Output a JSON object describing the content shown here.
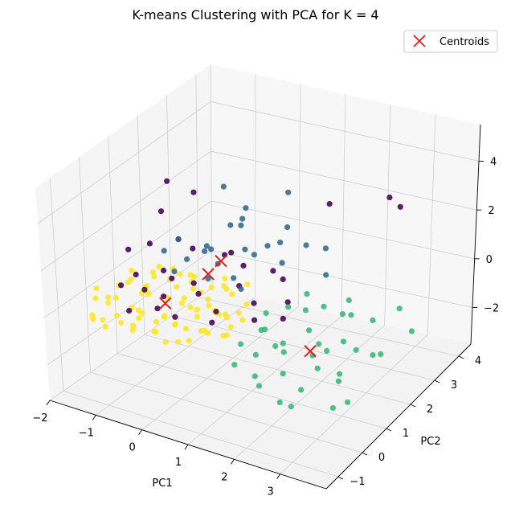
{
  "chart_data": {
    "type": "scatter",
    "projection": "3d",
    "title": "K-means Clustering with PCA for K = 4",
    "xlabel": "PC1",
    "ylabel": "PC2",
    "zlabel": "",
    "xlim": [
      -2,
      4
    ],
    "ylim": [
      -1.5,
      4.5
    ],
    "zlim": [
      -3.5,
      5.5
    ],
    "xticks": [
      "−2",
      "−1",
      "0",
      "1",
      "2",
      "3"
    ],
    "yticks": [
      "−1",
      "0",
      "1",
      "2",
      "3",
      "4"
    ],
    "zticks": [
      "−2",
      "0",
      "2",
      "4"
    ],
    "grid": true,
    "legend": {
      "position": "top-right",
      "entries": [
        "Centroids"
      ]
    },
    "colors": {
      "cluster_0": "#440154",
      "cluster_1": "#31688e",
      "cluster_2": "#35b779",
      "cluster_3": "#fde725",
      "centroid": "#e41a1c"
    },
    "series": [
      {
        "cluster": 0,
        "points": [
          [
            -1.2,
            0.5,
            0.6
          ],
          [
            -0.9,
            0.3,
            0.3
          ],
          [
            -0.6,
            0.8,
            0.5
          ],
          [
            -0.3,
            1.1,
            0.2
          ],
          [
            -1.5,
            1.5,
            0.9
          ],
          [
            0.1,
            0.6,
            0.4
          ],
          [
            0.4,
            1.6,
            0.0
          ],
          [
            -0.8,
            1.9,
            0.7
          ],
          [
            0.2,
            2.1,
            0.3
          ],
          [
            -1.1,
            -0.2,
            0.8
          ],
          [
            0.6,
            0.4,
            0.1
          ],
          [
            0.9,
            1.3,
            -0.2
          ],
          [
            -0.4,
            2.4,
            0.2
          ],
          [
            1.3,
            1.9,
            -0.5
          ],
          [
            0.5,
            2.7,
            -0.3
          ],
          [
            -1.6,
            0.9,
            1.1
          ],
          [
            -0.2,
            -0.4,
            0.5
          ],
          [
            -0.7,
            -0.6,
            0.3
          ],
          [
            0.8,
            -0.1,
            0.2
          ],
          [
            -1.3,
            2.2,
            0.6
          ],
          [
            1.2,
            0.8,
            -0.3
          ],
          [
            0.3,
            -0.6,
            0.6
          ],
          [
            1.6,
            1.2,
            -0.4
          ],
          [
            -0.5,
            1.5,
            3.5
          ],
          [
            -1.1,
            1.3,
            2.6
          ],
          [
            0.6,
            1.0,
            2.0
          ],
          [
            1.4,
            3.3,
            2.3
          ],
          [
            -1.4,
            2.0,
            3.1
          ],
          [
            2.9,
            3.0,
            3.5
          ],
          [
            2.8,
            3.6,
            2.5
          ],
          [
            -0.3,
            0.0,
            0.6
          ],
          [
            0.9,
            2.4,
            -0.2
          ],
          [
            -0.9,
            1.0,
            0.5
          ]
        ]
      },
      {
        "cluster": 1,
        "points": [
          [
            -0.5,
            1.2,
            1.0
          ],
          [
            -0.3,
            1.6,
            1.3
          ],
          [
            0.0,
            1.5,
            0.8
          ],
          [
            -0.8,
            1.4,
            1.5
          ],
          [
            0.3,
            2.0,
            1.1
          ],
          [
            -0.2,
            2.3,
            1.6
          ],
          [
            0.5,
            2.5,
            0.9
          ],
          [
            -0.6,
            2.0,
            0.6
          ],
          [
            0.1,
            1.1,
            1.8
          ],
          [
            0.4,
            1.7,
            2.4
          ],
          [
            -0.1,
            2.7,
            2.0
          ],
          [
            0.7,
            2.9,
            1.4
          ],
          [
            1.0,
            2.2,
            0.7
          ],
          [
            1.3,
            2.6,
            1.2
          ],
          [
            -1.0,
            1.2,
            1.1
          ],
          [
            0.2,
            0.8,
            0.9
          ],
          [
            0.8,
            1.0,
            0.6
          ],
          [
            -0.4,
            2.4,
            3.0
          ],
          [
            0.6,
            3.1,
            2.6
          ],
          [
            1.5,
            3.0,
            0.8
          ],
          [
            1.8,
            2.5,
            0.3
          ],
          [
            0.2,
            2.5,
            0.4
          ],
          [
            -0.6,
            0.9,
            0.7
          ],
          [
            -0.3,
            2.9,
            1.3
          ],
          [
            0.9,
            2.3,
            1.4
          ],
          [
            0.4,
            1.4,
            0.5
          ]
        ]
      },
      {
        "cluster": 2,
        "points": [
          [
            1.6,
            0.5,
            -0.2
          ],
          [
            2.0,
            0.2,
            -0.4
          ],
          [
            2.4,
            0.8,
            -0.1
          ],
          [
            2.1,
            1.2,
            0.2
          ],
          [
            2.7,
            0.4,
            -0.6
          ],
          [
            3.1,
            0.9,
            -0.3
          ],
          [
            1.8,
            -0.2,
            -0.5
          ],
          [
            2.5,
            -0.4,
            -0.7
          ],
          [
            3.0,
            -0.6,
            -0.9
          ],
          [
            3.4,
            0.2,
            -0.8
          ],
          [
            3.6,
            -0.2,
            -0.6
          ],
          [
            3.8,
            0.8,
            -0.4
          ],
          [
            1.4,
            0.9,
            0.0
          ],
          [
            1.9,
            1.6,
            0.4
          ],
          [
            2.8,
            1.4,
            0.2
          ],
          [
            3.3,
            1.7,
            -0.1
          ],
          [
            3.7,
            1.3,
            -0.9
          ],
          [
            2.2,
            -0.8,
            -1.0
          ],
          [
            3.0,
            -1.0,
            -1.2
          ],
          [
            3.9,
            -0.4,
            -1.1
          ],
          [
            1.5,
            -0.5,
            -0.8
          ],
          [
            2.6,
            2.0,
            0.1
          ],
          [
            3.5,
            2.4,
            -0.2
          ],
          [
            4.0,
            2.0,
            -0.5
          ],
          [
            2.3,
            0.0,
            -0.3
          ],
          [
            2.9,
            0.6,
            -0.5
          ],
          [
            1.7,
            0.2,
            0.1
          ],
          [
            2.0,
            -0.6,
            -0.9
          ],
          [
            3.2,
            -0.3,
            -0.2
          ],
          [
            2.5,
            1.0,
            -0.8
          ],
          [
            1.3,
            0.1,
            -0.6
          ],
          [
            2.7,
            -0.9,
            -1.3
          ],
          [
            3.6,
            0.5,
            0.0
          ],
          [
            2.1,
            1.9,
            -0.3
          ],
          [
            1.6,
            1.4,
            -0.1
          ],
          [
            3.8,
            -0.8,
            -1.0
          ],
          [
            2.4,
            -0.2,
            0.3
          ],
          [
            3.1,
            1.2,
            0.5
          ]
        ]
      },
      {
        "cluster": 3,
        "points": [
          [
            -1.8,
            0.0,
            -0.3
          ],
          [
            -1.6,
            0.4,
            -0.5
          ],
          [
            -1.4,
            -0.2,
            -0.1
          ],
          [
            -1.5,
            0.8,
            0.0
          ],
          [
            -1.2,
            0.3,
            -0.6
          ],
          [
            -1.0,
            0.6,
            -0.2
          ],
          [
            -0.8,
            -0.1,
            -0.5
          ],
          [
            -0.6,
            0.5,
            -0.8
          ],
          [
            -0.4,
            0.9,
            -0.3
          ],
          [
            -0.2,
            0.2,
            -0.7
          ],
          [
            0.0,
            0.7,
            -0.4
          ],
          [
            0.2,
            1.0,
            -0.6
          ],
          [
            0.4,
            0.4,
            -0.9
          ],
          [
            0.6,
            0.8,
            -0.5
          ],
          [
            -1.7,
            1.0,
            -0.4
          ],
          [
            -1.3,
            1.3,
            -0.2
          ],
          [
            -0.9,
            1.1,
            -0.7
          ],
          [
            -0.5,
            1.4,
            -0.4
          ],
          [
            -0.1,
            1.3,
            -0.8
          ],
          [
            0.3,
            1.5,
            -0.3
          ],
          [
            -1.9,
            0.6,
            -0.8
          ],
          [
            -1.1,
            -0.4,
            -0.3
          ],
          [
            -0.7,
            -0.5,
            -0.6
          ],
          [
            -0.3,
            -0.3,
            -0.2
          ],
          [
            0.1,
            -0.2,
            -0.9
          ],
          [
            0.5,
            0.0,
            -0.4
          ],
          [
            0.8,
            0.3,
            -0.7
          ],
          [
            -1.5,
            -0.6,
            -0.5
          ],
          [
            -1.2,
            1.7,
            -0.6
          ],
          [
            -0.8,
            1.8,
            -0.3
          ],
          [
            -0.4,
            1.9,
            -0.7
          ],
          [
            0.0,
            1.8,
            -0.5
          ],
          [
            0.4,
            1.9,
            -0.2
          ],
          [
            -1.6,
            1.5,
            -0.9
          ],
          [
            -1.0,
            0.0,
            -1.0
          ],
          [
            -0.6,
            0.1,
            -1.1
          ],
          [
            -0.2,
            0.6,
            -1.2
          ],
          [
            0.2,
            0.5,
            -1.0
          ],
          [
            0.7,
            1.2,
            -0.9
          ],
          [
            -1.3,
            0.7,
            -1.1
          ],
          [
            -1.7,
            -0.3,
            -0.7
          ],
          [
            -0.9,
            0.4,
            0.1
          ],
          [
            -0.5,
            0.8,
            0.2
          ],
          [
            -0.1,
            1.0,
            0.0
          ],
          [
            0.3,
            1.2,
            0.3
          ],
          [
            -1.4,
            0.2,
            0.3
          ],
          [
            -1.0,
            1.5,
            0.1
          ],
          [
            -0.6,
            1.6,
            -0.1
          ],
          [
            0.1,
            0.3,
            0.1
          ],
          [
            0.6,
            0.5,
            -0.1
          ],
          [
            -1.8,
            1.3,
            -0.2
          ],
          [
            -1.2,
            -0.1,
            -0.9
          ],
          [
            -0.7,
            1.3,
            -1.0
          ],
          [
            -0.3,
            1.6,
            -0.9
          ],
          [
            0.2,
            1.4,
            -1.1
          ],
          [
            0.5,
            1.7,
            -0.8
          ],
          [
            -1.1,
            1.9,
            -0.5
          ],
          [
            -0.2,
            -0.5,
            -0.4
          ],
          [
            0.4,
            -0.3,
            -0.6
          ],
          [
            0.8,
            0.9,
            -0.3
          ],
          [
            -1.5,
            1.8,
            -0.3
          ],
          [
            -0.9,
            2.0,
            -0.8
          ],
          [
            -0.4,
            0.3,
            0.2
          ],
          [
            0.0,
            -0.1,
            -0.3
          ],
          [
            -1.9,
            0.2,
            -0.1
          ],
          [
            -1.6,
            -0.1,
            -1.0
          ],
          [
            -1.3,
            -0.5,
            -0.8
          ],
          [
            -0.8,
            0.8,
            -1.2
          ],
          [
            -0.3,
            0.0,
            -1.3
          ],
          [
            0.1,
            0.8,
            -1.3
          ],
          [
            0.5,
            1.1,
            -1.2
          ],
          [
            0.7,
            0.6,
            -1.0
          ],
          [
            -1.7,
            1.6,
            -1.1
          ],
          [
            -1.2,
            1.1,
            0.2
          ],
          [
            -0.6,
            -0.3,
            0.0
          ],
          [
            0.3,
            0.2,
            -0.1
          ],
          [
            -0.1,
            1.9,
            -0.2
          ],
          [
            -1.4,
            1.0,
            -0.7
          ]
        ]
      }
    ],
    "centroids": [
      [
        0.25,
        1.2,
        1.3
      ],
      [
        2.65,
        0.4,
        -0.45
      ],
      [
        -0.7,
        0.7,
        -0.5
      ],
      [
        -0.1,
        1.3,
        0.5
      ]
    ]
  }
}
